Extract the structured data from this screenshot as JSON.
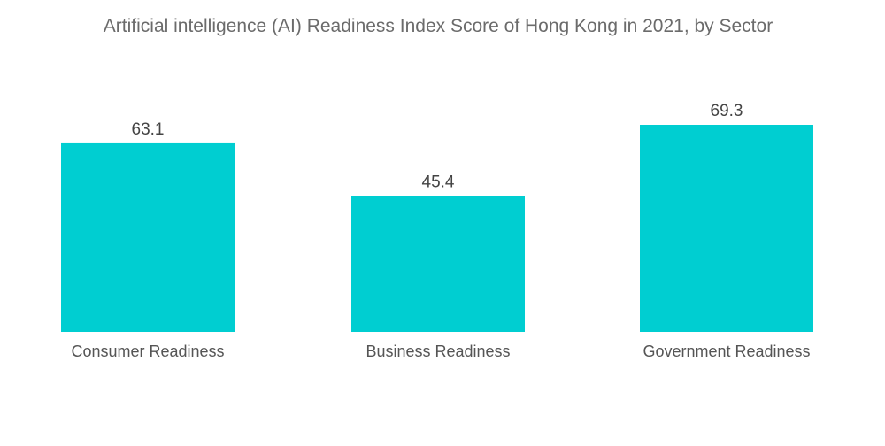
{
  "chart_data": {
    "type": "bar",
    "title": "Artificial intelligence (AI) Readiness Index Score of Hong Kong in 2021, by Sector",
    "categories": [
      "Consumer Readiness",
      "Business Readiness",
      "Government Readiness"
    ],
    "values": [
      63.1,
      45.4,
      69.3
    ],
    "value_labels": [
      "63.1",
      "45.4",
      "69.3"
    ],
    "xlabel": "",
    "ylabel": "",
    "ylim": [
      0,
      69.3
    ],
    "grid": false,
    "legend": "none",
    "bar_color": "#00CED1"
  }
}
